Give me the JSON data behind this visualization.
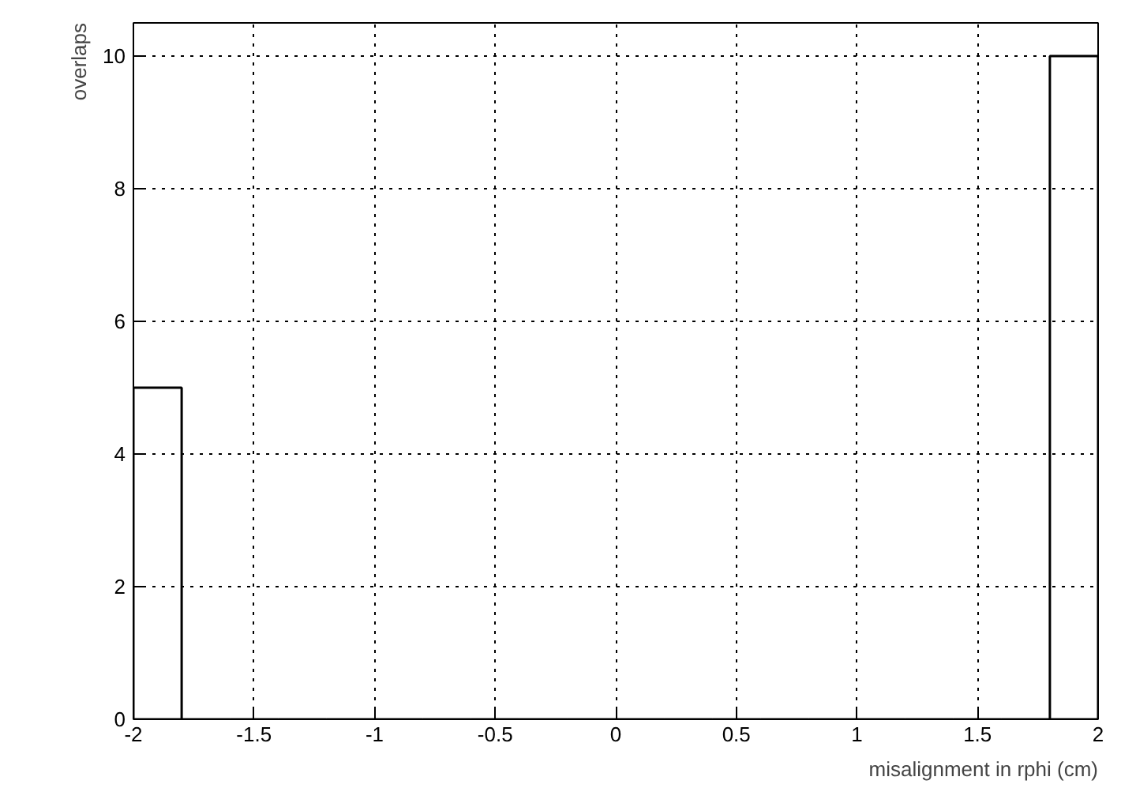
{
  "chart_data": {
    "type": "histogram",
    "xlabel": "misalignment in rphi (cm)",
    "ylabel": "overlaps",
    "bins": [
      -2.0,
      -1.8,
      -1.6,
      -1.4,
      -1.2,
      -1.0,
      -0.8,
      -0.6,
      -0.4,
      -0.2,
      0.0,
      0.2,
      0.4,
      0.6,
      0.8,
      1.0,
      1.2,
      1.4,
      1.6,
      1.8,
      2.0
    ],
    "values": [
      5,
      0,
      0,
      0,
      0,
      0,
      0,
      0,
      0,
      0,
      0,
      0,
      0,
      0,
      0,
      0,
      0,
      0,
      0,
      10
    ],
    "color": "#000000",
    "xlim": [
      -2,
      2
    ],
    "ylim": [
      0,
      10.5
    ],
    "xticks": [
      -2,
      -1.5,
      -1,
      -0.5,
      0,
      0.5,
      1,
      1.5,
      2
    ],
    "yticks": [
      0,
      2,
      4,
      6,
      8,
      10
    ],
    "grid": true,
    "line_style": "dotted"
  }
}
